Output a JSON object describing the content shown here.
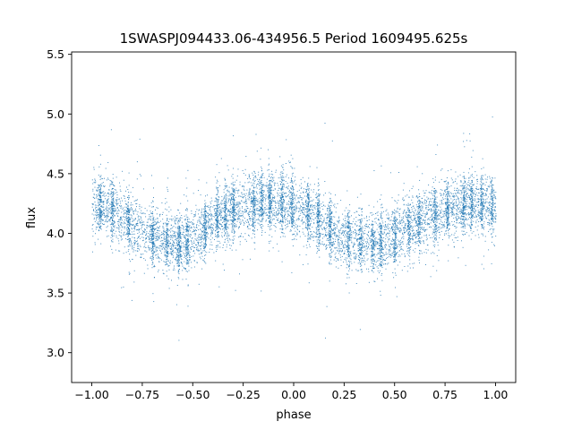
{
  "chart_data": {
    "type": "scatter",
    "title": "1SWASPJ094433.06-434956.5 Period 1609495.625s",
    "xlabel": "phase",
    "ylabel": "flux",
    "xlim": [
      -1.1,
      1.1
    ],
    "ylim": [
      2.75,
      5.52
    ],
    "x_ticks": [
      -1.0,
      -0.75,
      -0.5,
      -0.25,
      0.0,
      0.25,
      0.5,
      0.75,
      1.0
    ],
    "x_tick_labels": [
      "−1.00",
      "−0.75",
      "−0.50",
      "−0.25",
      "0.00",
      "0.25",
      "0.50",
      "0.75",
      "1.00"
    ],
    "y_ticks": [
      3.0,
      3.5,
      4.0,
      4.5,
      5.0,
      5.5
    ],
    "y_tick_labels": [
      "3.0",
      "3.5",
      "4.0",
      "4.5",
      "5.0",
      "5.5"
    ],
    "grid": false,
    "legend": "none",
    "marker_color": "#1f77b4",
    "series": [
      {
        "x": [
          -1.0,
          -0.95,
          -0.9,
          -0.85,
          -0.8,
          -0.75,
          -0.7,
          -0.65,
          -0.6,
          -0.55,
          -0.5,
          -0.45,
          -0.4,
          -0.35,
          -0.3,
          -0.25,
          -0.2,
          -0.15,
          -0.1,
          -0.05,
          0.0,
          0.05,
          0.1,
          0.15,
          0.2,
          0.25,
          0.3,
          0.35,
          0.4,
          0.45,
          0.5,
          0.55,
          0.6,
          0.65,
          0.7,
          0.75,
          0.8,
          0.85,
          0.9,
          0.95,
          1.0
        ],
        "y": [
          4.22,
          4.24,
          4.2,
          4.14,
          4.07,
          4.02,
          3.98,
          3.94,
          3.92,
          3.93,
          3.98,
          4.04,
          4.1,
          4.15,
          4.19,
          4.22,
          4.25,
          4.27,
          4.27,
          4.26,
          4.23,
          4.2,
          4.14,
          4.08,
          4.02,
          3.98,
          3.95,
          3.93,
          3.92,
          3.94,
          3.98,
          4.03,
          4.08,
          4.13,
          4.17,
          4.2,
          4.22,
          4.24,
          4.24,
          4.23,
          4.22
        ]
      }
    ]
  }
}
